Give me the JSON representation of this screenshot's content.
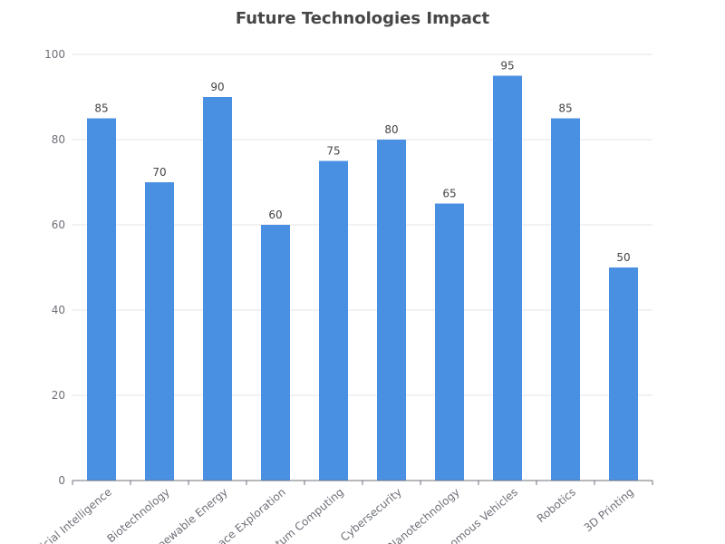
{
  "chart_data": {
    "type": "bar",
    "title": "Future Technologies Impact",
    "xlabel": "",
    "ylabel": "",
    "categories": [
      "Artificial Intelligence",
      "Biotechnology",
      "Renewable Energy",
      "Space Exploration",
      "Quantum Computing",
      "Cybersecurity",
      "Nanotechnology",
      "Autonomous Vehicles",
      "Robotics",
      "3D Printing"
    ],
    "values": [
      85,
      70,
      90,
      60,
      75,
      80,
      65,
      95,
      85,
      50
    ],
    "ylim": [
      0,
      100
    ],
    "yticks": [
      0,
      20,
      40,
      60,
      80,
      100
    ],
    "grid": true,
    "legend": "none",
    "colors": {
      "bar": "#4a90e2",
      "grid": "#e6e6e6",
      "axis": "#6e7079"
    }
  }
}
